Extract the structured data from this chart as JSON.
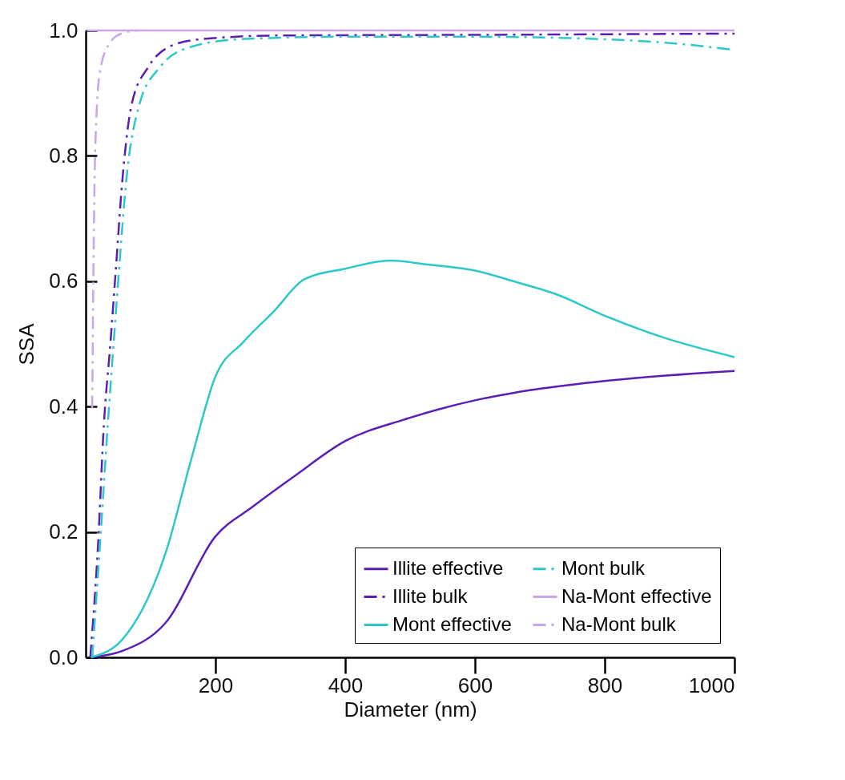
{
  "chart_data": {
    "type": "line",
    "xlabel": "Diameter (nm)",
    "ylabel": "SSA",
    "xlim": [
      0,
      1000
    ],
    "xticks": [
      200,
      400,
      600,
      800,
      1000
    ],
    "ylim": [
      0,
      1
    ],
    "yticks": [
      {
        "value": 0,
        "label": "0.0"
      },
      0.2,
      0.4,
      0.6,
      0.8,
      {
        "value": 1,
        "label": "1.0"
      }
    ],
    "legend": "bottom right",
    "series": [
      {
        "name": "Illite effective",
        "color": "#5b1fb5",
        "line_style": "solid",
        "x": [
          8,
          56,
          123,
          200,
          257,
          323,
          400,
          490,
          600,
          697,
          800,
          1000
        ],
        "values": [
          0,
          0.01,
          0.055,
          0.193,
          0.24,
          0.29,
          0.345,
          0.379,
          0.41,
          0.428,
          0.441,
          0.457
        ]
      },
      {
        "name": "Illite bulk",
        "color": "#5b1fb5",
        "line_style": "dashed",
        "x": [
          7,
          19,
          28,
          38,
          47,
          56,
          71,
          96,
          127,
          176,
          300,
          600,
          1000
        ],
        "values": [
          0,
          0.179,
          0.371,
          0.5,
          0.627,
          0.755,
          0.883,
          0.941,
          0.973,
          0.986,
          0.992,
          0.993,
          0.995
        ]
      },
      {
        "name": "Mont effective",
        "color": "#2ec8c8",
        "line_style": "solid",
        "x": [
          8,
          56,
          123,
          163,
          200,
          243,
          290,
          337,
          400,
          470,
          524,
          600,
          659,
          726,
          800,
          891,
          1000
        ],
        "values": [
          0,
          0.028,
          0.166,
          0.317,
          0.448,
          0.503,
          0.552,
          0.603,
          0.62,
          0.633,
          0.627,
          0.617,
          0.6,
          0.579,
          0.545,
          0.51,
          0.479
        ]
      },
      {
        "name": "Mont bulk",
        "color": "#2ec8c8",
        "line_style": "dashed",
        "x": [
          10,
          22,
          34,
          43,
          52,
          62,
          83,
          114,
          151,
          237,
          400,
          600,
          800,
          900,
          1000
        ],
        "values": [
          0,
          0.179,
          0.371,
          0.5,
          0.627,
          0.755,
          0.883,
          0.941,
          0.97,
          0.986,
          0.99,
          0.99,
          0.986,
          0.98,
          0.969
        ]
      },
      {
        "name": "Na-Mont effective",
        "color": "#c9a6ec",
        "line_style": "solid",
        "x": [
          2,
          1000
        ],
        "values": [
          1.0,
          1.0
        ]
      },
      {
        "name": "Na-Mont bulk",
        "color": "#c9a6ec",
        "line_style": "dashed",
        "x": [
          10,
          12,
          15,
          22,
          37,
          55,
          80
        ],
        "values": [
          0.397,
          0.627,
          0.82,
          0.935,
          0.98,
          0.995,
          1.0
        ]
      }
    ]
  }
}
